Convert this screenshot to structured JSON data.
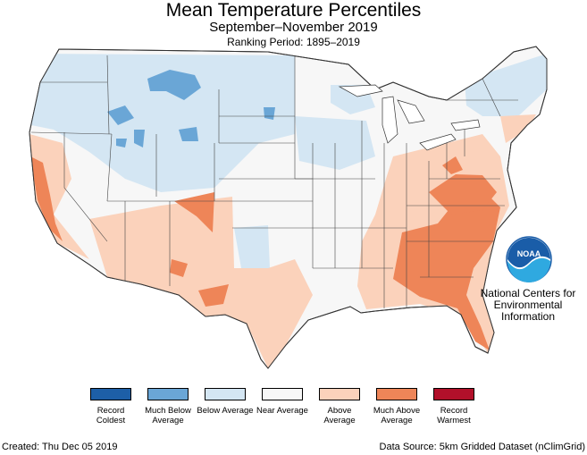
{
  "header": {
    "title": "Mean Temperature Percentiles",
    "subtitle": "September–November 2019",
    "ranking": "Ranking Period: 1895–2019"
  },
  "logo": {
    "text": "NOAA",
    "caption": "National Centers for Environmental Information"
  },
  "legend": [
    {
      "label": "Record Coldest",
      "color": "#1d5fa7"
    },
    {
      "label": "Much Below Average",
      "color": "#6aa6d6"
    },
    {
      "label": "Below Average",
      "color": "#d4e6f3"
    },
    {
      "label": "Near Average",
      "color": "#f7f7f7"
    },
    {
      "label": "Above Average",
      "color": "#fbd2bb"
    },
    {
      "label": "Much Above Average",
      "color": "#ee8558"
    },
    {
      "label": "Record Warmest",
      "color": "#b2102a"
    }
  ],
  "footer": {
    "created": "Created: Thu Dec 05 2019",
    "source": "Data Source: 5km Gridded Dataset (nClimGrid)"
  }
}
